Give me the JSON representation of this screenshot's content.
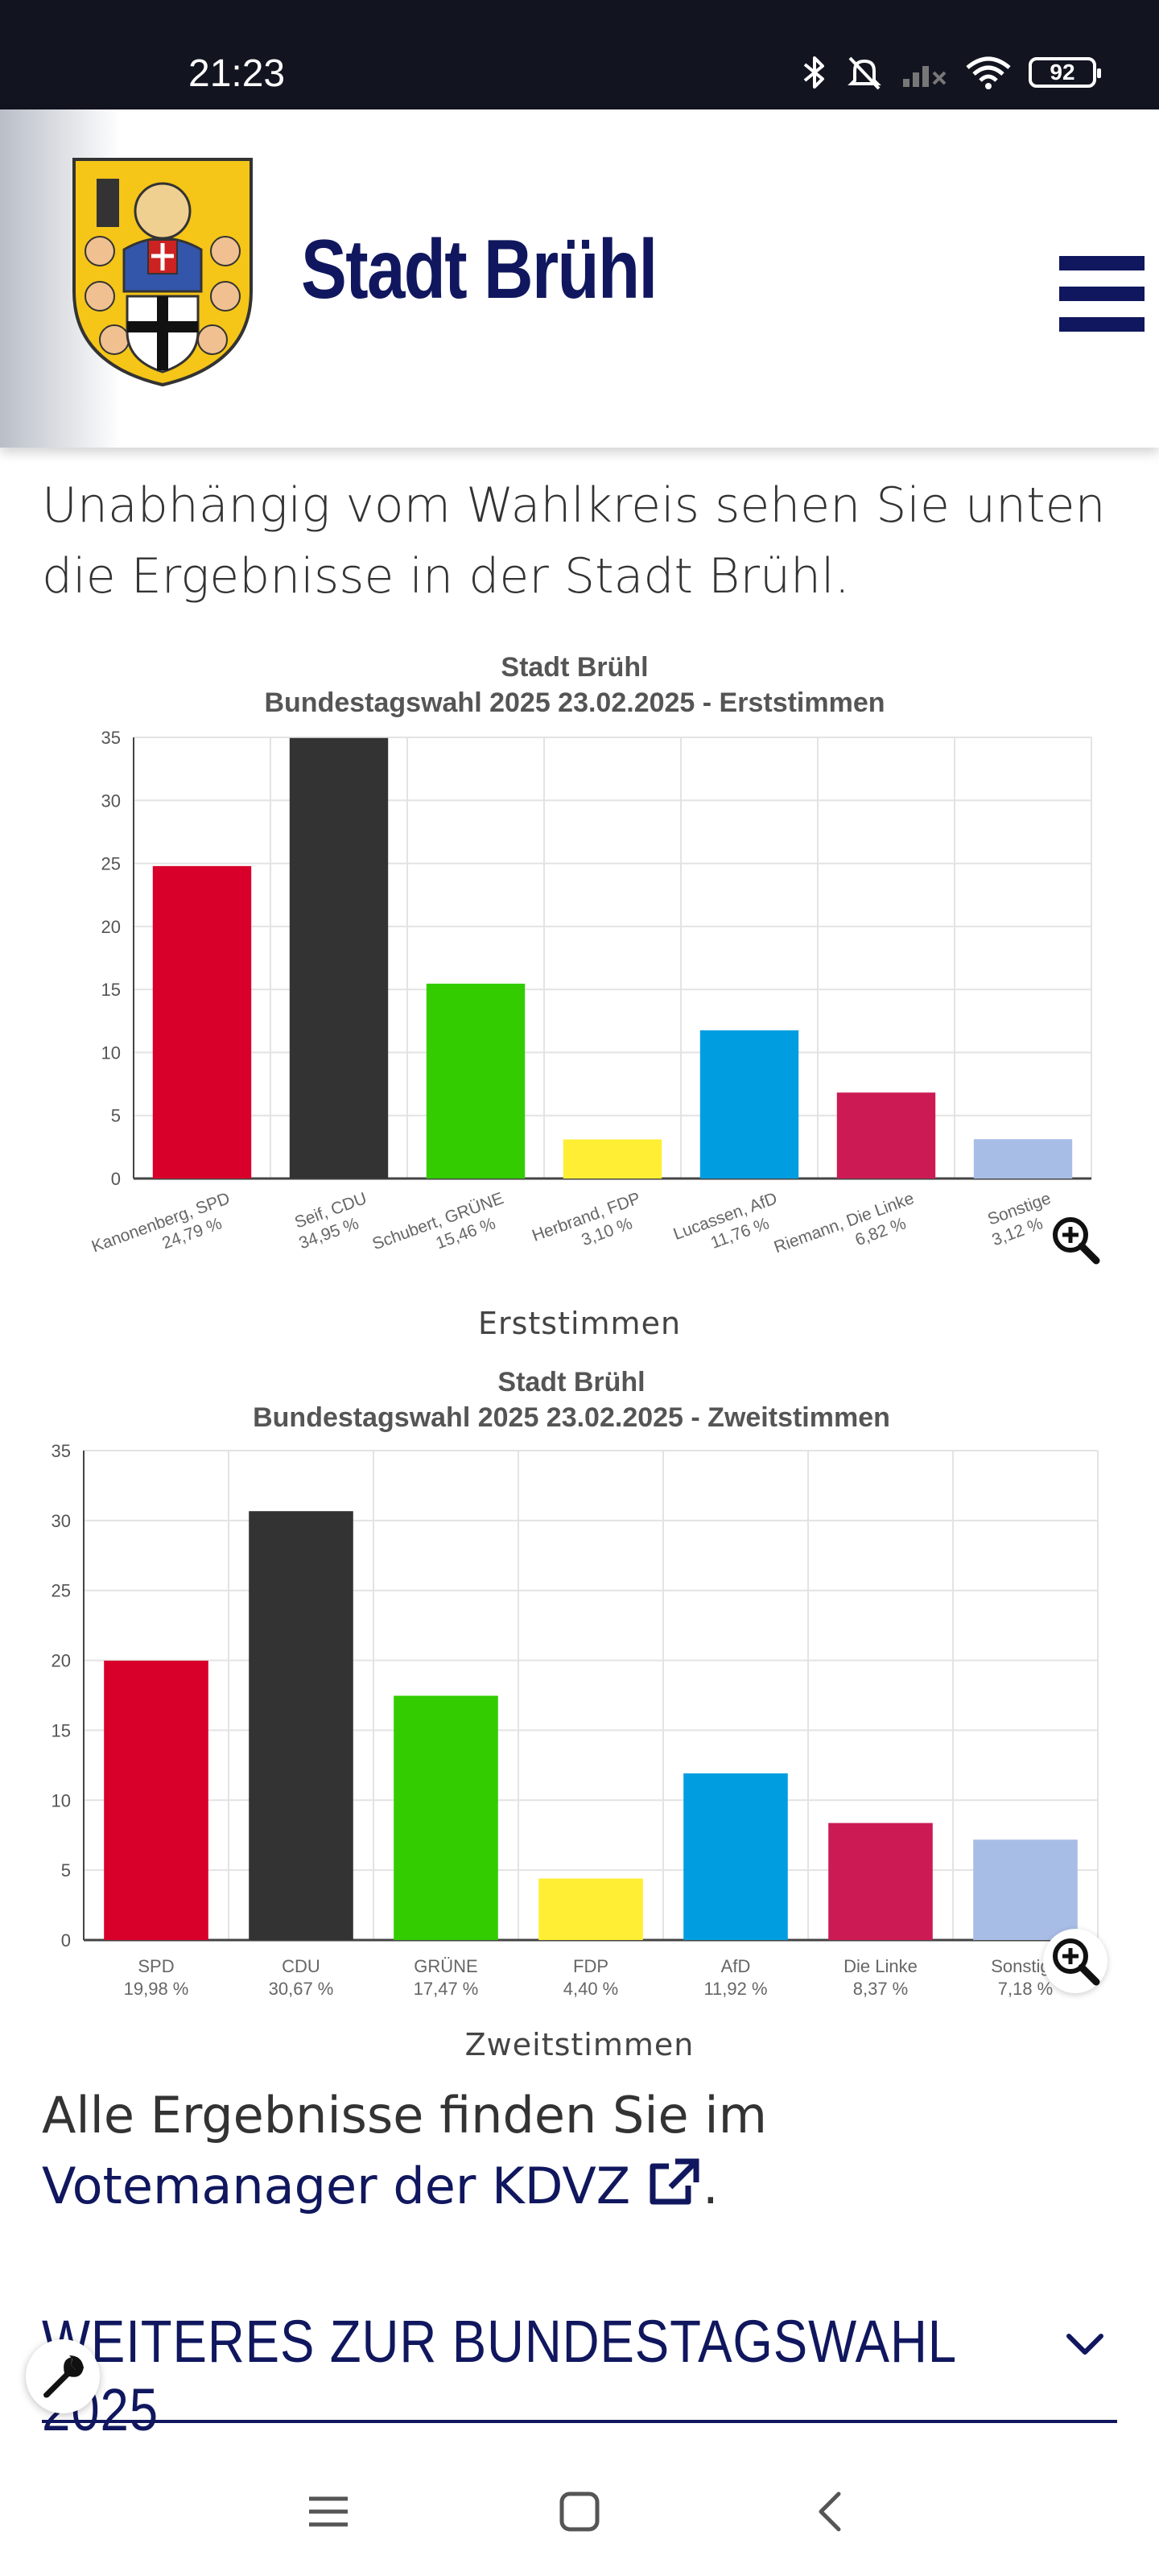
{
  "status_bar": {
    "time": "21:23",
    "battery": "92",
    "icons": [
      "bluetooth-icon",
      "silent-icon",
      "signal-icon",
      "wifi-icon",
      "battery-icon"
    ]
  },
  "header": {
    "site_title": "Stadt Brühl",
    "logo": "city-crest",
    "menu_icon": "hamburger-menu-icon",
    "brand_color": "#10175e"
  },
  "intro_text": "Unabhängig vom Wahlkreis sehen Sie unten die Ergebnisse in der Stadt Brühl.",
  "chart_data": [
    {
      "type": "bar",
      "title": "Stadt Brühl",
      "subtitle": "Bundestagswahl 2025 23.02.2025  - Erststimmen",
      "categories": [
        "Kanonenberg, SPD",
        "Seif, CDU",
        "Schubert, GRÜNE",
        "Herbrand, FDP",
        "Lucassen, AfD",
        "Riemann, Die Linke",
        "Sonstige"
      ],
      "value_labels": [
        "24,79 %",
        "34,95 %",
        "15,46 %",
        "3,10 %",
        "11,76 %",
        "6,82 %",
        "3,12 %"
      ],
      "values": [
        24.79,
        34.95,
        15.46,
        3.1,
        11.76,
        6.82,
        3.12
      ],
      "colors": [
        "#d8002a",
        "#333333",
        "#33cc00",
        "#ffee33",
        "#009ee0",
        "#cc1b54",
        "#a8bde6"
      ],
      "ylim": [
        0,
        35
      ],
      "yticks": [
        0,
        5,
        10,
        15,
        20,
        25,
        30,
        35
      ],
      "grid": true,
      "x_labels_rotated": true,
      "caption": "Erststimmen"
    },
    {
      "type": "bar",
      "title": "Stadt Brühl",
      "subtitle": "Bundestagswahl 2025 23.02.2025  - Zweitstimmen",
      "categories": [
        "SPD",
        "CDU",
        "GRÜNE",
        "FDP",
        "AfD",
        "Die Linke",
        "Sonstige"
      ],
      "value_labels": [
        "19,98 %",
        "30,67 %",
        "17,47 %",
        "4,40 %",
        "11,92 %",
        "8,37 %",
        "7,18 %"
      ],
      "values": [
        19.98,
        30.67,
        17.47,
        4.4,
        11.92,
        8.37,
        7.18
      ],
      "colors": [
        "#d8002a",
        "#333333",
        "#33cc00",
        "#ffee33",
        "#009ee0",
        "#cc1b54",
        "#a8bde6"
      ],
      "ylim": [
        0,
        35
      ],
      "yticks": [
        0,
        5,
        10,
        15,
        20,
        25,
        30,
        35
      ],
      "grid": true,
      "x_labels_rotated": false,
      "caption": "Zweitstimmen"
    }
  ],
  "results": {
    "prefix": "Alle Ergebnisse finden Sie im",
    "link_text": "Votemanager der KDVZ",
    "suffix": "."
  },
  "accordion": {
    "title": "WEITERES ZUR BUNDESTAGSWAHL 2025"
  },
  "nav_bar": {
    "icons": [
      "recent-apps-icon",
      "home-icon",
      "back-icon"
    ]
  }
}
